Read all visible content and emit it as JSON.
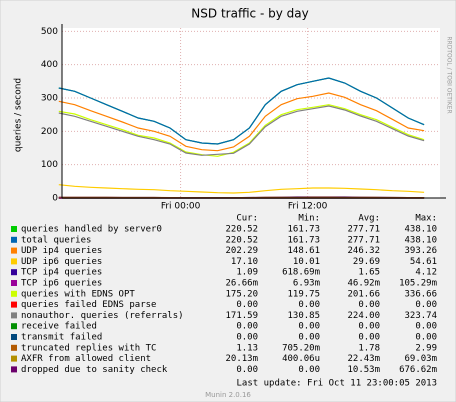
{
  "chart_data": {
    "type": "line",
    "title": "NSD traffic - by day",
    "y_label": "queries / second",
    "side_text": "RRDTOOL / TOBI OETIKER",
    "x": [
      -11.5,
      -10,
      -8.5,
      -7,
      -5.5,
      -4,
      -2.5,
      -1,
      0.5,
      2,
      3.5,
      5,
      6.5,
      8,
      9.5,
      11,
      12.5,
      14,
      15.5,
      17,
      18.5,
      20,
      21.5,
      23
    ],
    "xlim": [
      -11.2,
      24.5
    ],
    "xticks": [
      {
        "value": 0,
        "label": "Fri 00:00"
      },
      {
        "value": 12,
        "label": "Fri 12:00"
      }
    ],
    "ylim": [
      0,
      510
    ],
    "yticks": [
      0,
      100,
      200,
      300,
      400,
      500
    ],
    "grid": true,
    "stat_headers": [
      "Cur:",
      "Min:",
      "Avg:",
      "Max:"
    ],
    "series": [
      {
        "name": "queries handled by server0",
        "color": "#00CC00",
        "stats": [
          "220.52",
          "161.73",
          "277.71",
          "438.10"
        ],
        "values": [
          330,
          320,
          300,
          280,
          260,
          240,
          230,
          210,
          175,
          165,
          162,
          175,
          210,
          280,
          320,
          340,
          350,
          360,
          345,
          320,
          300,
          270,
          240,
          220
        ]
      },
      {
        "name": "total queries",
        "color": "#0066B3",
        "stats": [
          "220.52",
          "161.73",
          "277.71",
          "438.10"
        ],
        "values": [
          330,
          320,
          300,
          280,
          260,
          240,
          230,
          210,
          175,
          165,
          162,
          175,
          210,
          280,
          320,
          340,
          350,
          360,
          345,
          320,
          300,
          270,
          240,
          220
        ]
      },
      {
        "name": "UDP ip4 queries",
        "color": "#FF8000",
        "stats": [
          "202.29",
          "148.61",
          "246.32",
          "393.26"
        ],
        "values": [
          290,
          280,
          262,
          245,
          228,
          210,
          200,
          185,
          155,
          145,
          142,
          153,
          185,
          245,
          280,
          298,
          305,
          315,
          302,
          280,
          262,
          236,
          210,
          202
        ]
      },
      {
        "name": "UDP ip6 queries",
        "color": "#FFCC00",
        "stats": [
          "17.10",
          "10.01",
          "29.69",
          "54.61"
        ],
        "values": [
          40,
          35,
          32,
          30,
          28,
          26,
          25,
          22,
          20,
          18,
          16,
          15,
          17,
          22,
          26,
          28,
          30,
          30,
          29,
          27,
          25,
          22,
          20,
          17
        ]
      },
      {
        "name": "TCP ip4 queries",
        "color": "#330099",
        "stats": [
          "1.09",
          "618.69m",
          "1.65",
          "4.12"
        ],
        "values": [
          2,
          2,
          2,
          2,
          1.5,
          1.5,
          1.5,
          1,
          1,
          1,
          1,
          1,
          1.5,
          2,
          2.5,
          3,
          3,
          3,
          3,
          2.5,
          2,
          1.5,
          1.2,
          1.1
        ]
      },
      {
        "name": "TCP ip6 queries",
        "color": "#990099",
        "stats": [
          "26.66m",
          "6.93m",
          "46.92m",
          "105.29m"
        ],
        "values": [
          0.05,
          0.05,
          0.05,
          0.05,
          0.04,
          0.04,
          0.04,
          0.03,
          0.03,
          0.03,
          0.02,
          0.02,
          0.03,
          0.04,
          0.05,
          0.06,
          0.06,
          0.06,
          0.05,
          0.05,
          0.04,
          0.04,
          0.03,
          0.03
        ]
      },
      {
        "name": "queries with EDNS OPT",
        "color": "#CCFF00",
        "stats": [
          "175.20",
          "119.75",
          "201.66",
          "336.66"
        ],
        "values": [
          260,
          252,
          235,
          220,
          205,
          188,
          180,
          165,
          138,
          130,
          125,
          137,
          165,
          218,
          250,
          265,
          272,
          280,
          268,
          250,
          235,
          212,
          190,
          175
        ]
      },
      {
        "name": "queries failed EDNS parse",
        "color": "#FF0000",
        "stats": [
          "0.00",
          "0.00",
          "0.00",
          "0.00"
        ],
        "values": [
          0,
          0,
          0,
          0,
          0,
          0,
          0,
          0,
          0,
          0,
          0,
          0,
          0,
          0,
          0,
          0,
          0,
          0,
          0,
          0,
          0,
          0,
          0,
          0
        ]
      },
      {
        "name": "nonauthor. queries (referrals)",
        "color": "#808080",
        "stats": [
          "171.59",
          "130.85",
          "224.00",
          "323.74"
        ],
        "values": [
          255,
          245,
          230,
          215,
          200,
          185,
          175,
          162,
          135,
          128,
          131,
          134,
          162,
          214,
          245,
          260,
          268,
          276,
          264,
          246,
          230,
          208,
          186,
          172
        ]
      },
      {
        "name": "receive failed",
        "color": "#008F00",
        "stats": [
          "0.00",
          "0.00",
          "0.00",
          "0.00"
        ],
        "values": [
          0,
          0,
          0,
          0,
          0,
          0,
          0,
          0,
          0,
          0,
          0,
          0,
          0,
          0,
          0,
          0,
          0,
          0,
          0,
          0,
          0,
          0,
          0,
          0
        ]
      },
      {
        "name": "transmit failed",
        "color": "#00487D",
        "stats": [
          "0.00",
          "0.00",
          "0.00",
          "0.00"
        ],
        "values": [
          0,
          0,
          0,
          0,
          0,
          0,
          0,
          0,
          0,
          0,
          0,
          0,
          0,
          0,
          0,
          0,
          0,
          0,
          0,
          0,
          0,
          0,
          0,
          0
        ]
      },
      {
        "name": "truncated replies with TC",
        "color": "#B35A00",
        "stats": [
          "1.13",
          "705.20m",
          "1.78",
          "2.99"
        ],
        "values": [
          2,
          2,
          2,
          1.8,
          1.6,
          1.5,
          1.4,
          1.2,
          1,
          0.9,
          0.8,
          0.9,
          1.2,
          1.8,
          2,
          2.2,
          2.3,
          2.4,
          2.2,
          2,
          1.8,
          1.5,
          1.3,
          1.1
        ]
      },
      {
        "name": "AXFR from allowed client",
        "color": "#B38F00",
        "stats": [
          "20.13m",
          "400.06u",
          "22.43m",
          "69.03m"
        ],
        "values": [
          0.02,
          0.02,
          0.02,
          0.02,
          0.02,
          0.02,
          0.02,
          0.02,
          0.02,
          0.02,
          0.02,
          0.02,
          0.02,
          0.02,
          0.02,
          0.02,
          0.02,
          0.02,
          0.02,
          0.02,
          0.02,
          0.02,
          0.02,
          0.02
        ]
      },
      {
        "name": "dropped due to sanity check",
        "color": "#6B006B",
        "stats": [
          "0.00",
          "0.00",
          "10.53m",
          "676.62m"
        ],
        "values": [
          0,
          0,
          0,
          0,
          0,
          0,
          0,
          0,
          0,
          0,
          0,
          0,
          0,
          0,
          0,
          0,
          0,
          0,
          0,
          0,
          0,
          0,
          0,
          0
        ]
      }
    ],
    "last_update": "Last update:  Fri Oct 11 23:00:05 2013",
    "footer": "Munin 2.0.16"
  }
}
